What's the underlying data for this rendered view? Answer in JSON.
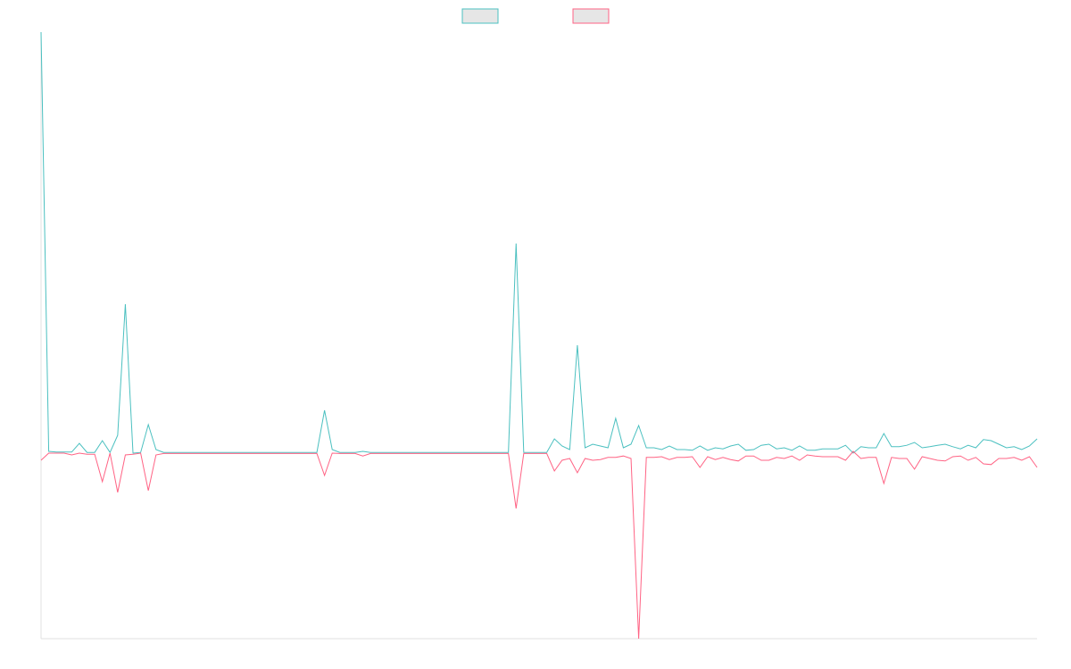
{
  "chart_data": {
    "type": "line",
    "legend": "top",
    "categories": [
      null,
      null,
      null,
      null,
      null,
      null,
      null,
      null,
      null,
      null,
      null,
      null,
      null,
      null,
      null,
      null,
      null,
      null,
      null,
      null,
      null,
      null,
      null,
      null,
      null,
      null,
      null,
      null,
      null,
      null,
      null,
      null,
      null,
      null,
      null,
      null,
      null,
      null,
      null,
      null,
      null,
      null,
      null,
      null,
      null,
      null,
      null,
      null,
      null,
      null,
      null,
      null,
      null,
      null,
      null,
      null,
      null,
      null,
      null,
      null,
      null,
      null,
      null,
      null,
      null,
      null,
      null,
      null,
      null,
      null,
      null,
      null,
      null,
      null,
      null,
      null,
      null,
      null,
      null,
      null,
      null,
      null,
      null,
      null,
      null,
      null,
      null,
      null,
      null,
      null,
      null,
      null,
      null,
      null,
      null,
      null,
      null,
      null,
      null,
      null,
      null,
      null,
      null,
      null,
      null,
      null,
      null,
      null,
      null,
      null,
      null,
      null,
      null,
      null,
      null,
      null,
      null,
      null,
      null,
      null,
      null,
      null,
      null,
      null,
      null,
      null,
      null,
      null,
      null,
      null,
      null
    ],
    "ylim": [
      -52,
      118
    ],
    "series": [
      {
        "color": "#4bc0c0",
        "values": [
          118,
          0.5,
          0.3,
          0.3,
          0.3,
          2.75,
          0.2,
          0.2,
          3.5,
          0.2,
          5,
          41.75,
          0,
          0.2,
          8,
          1,
          0.2,
          0.2,
          0.2,
          0.2,
          0.2,
          0.2,
          0.2,
          0.2,
          0.2,
          0.2,
          0.2,
          0.2,
          0.2,
          0.2,
          0.2,
          0.2,
          0.2,
          0.2,
          0.2,
          0.2,
          0.2,
          12,
          1,
          0.2,
          0.2,
          0.2,
          0.5,
          0.2,
          0.2,
          0.2,
          0.2,
          0.2,
          0.2,
          0.2,
          0.2,
          0.2,
          0.2,
          0.2,
          0.2,
          0.2,
          0.2,
          0.2,
          0.2,
          0.2,
          0.2,
          0.2,
          58.75,
          0.2,
          0.2,
          0.2,
          0.2,
          4,
          2,
          1,
          30.25,
          1.5,
          2.5,
          2,
          1.5,
          9.75,
          1.5,
          2.5,
          7.75,
          1.5,
          1.5,
          1,
          2,
          1,
          1,
          0.8,
          2,
          0.8,
          1.5,
          1.2,
          2,
          2.5,
          0.8,
          1,
          2.2,
          2.5,
          1.2,
          1.5,
          0.8,
          2,
          0.8,
          0.8,
          1.2,
          1.2,
          1.2,
          2.2,
          0,
          1.8,
          1.5,
          1.5,
          5.5,
          1.8,
          1.8,
          2.2,
          3,
          1.5,
          1.8,
          2.2,
          2.5,
          1.8,
          1.2,
          2.2,
          1.5,
          3.8,
          3.5,
          2.5,
          1.5,
          1.8,
          1,
          2,
          4
        ]
      },
      {
        "color": "#ff6384",
        "values": [
          -2,
          0,
          0,
          0,
          -0.5,
          0,
          -0.3,
          -0.3,
          -8,
          0,
          -11,
          -0.5,
          -0.3,
          0,
          -10.5,
          -0.5,
          -0.1,
          -0.1,
          -0.1,
          -0.1,
          -0.1,
          -0.1,
          -0.1,
          -0.1,
          -0.1,
          -0.1,
          -0.1,
          -0.1,
          -0.1,
          -0.1,
          -0.1,
          -0.1,
          -0.1,
          -0.1,
          -0.1,
          -0.1,
          -0.1,
          -6.25,
          0,
          -0.1,
          -0.1,
          -0.1,
          -0.8,
          -0.1,
          -0.1,
          -0.1,
          -0.1,
          -0.1,
          -0.1,
          -0.1,
          -0.1,
          -0.1,
          -0.1,
          -0.1,
          -0.1,
          -0.1,
          -0.1,
          -0.1,
          -0.1,
          -0.1,
          -0.1,
          -0.1,
          -15.5,
          -0.1,
          -0.1,
          -0.1,
          -0.1,
          -5,
          -2,
          -1.5,
          -5.5,
          -1.5,
          -2,
          -1.8,
          -1.2,
          -1.2,
          -0.8,
          -1.5,
          -52,
          -1.2,
          -1.2,
          -1,
          -1.8,
          -1.2,
          -1.2,
          -1,
          -4,
          -1,
          -1.8,
          -1.2,
          -1.8,
          -2.2,
          -0.8,
          -0.8,
          -2,
          -2,
          -1.2,
          -1.5,
          -0.8,
          -2,
          -0.5,
          -0.8,
          -1,
          -1,
          -1,
          -2,
          0.5,
          -1.5,
          -1.2,
          -1.2,
          -8.5,
          -1.2,
          -1.5,
          -1.5,
          -4.5,
          -1,
          -1.5,
          -2,
          -2.2,
          -1,
          -0.8,
          -2,
          -1.2,
          -3,
          -3.2,
          -1.5,
          -1.5,
          -1.2,
          -2,
          -1,
          -4
        ]
      }
    ]
  }
}
